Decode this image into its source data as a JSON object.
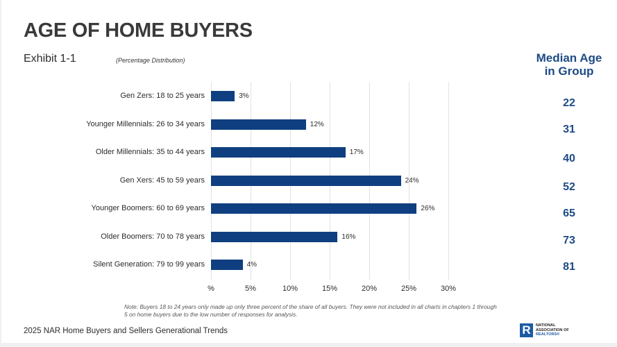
{
  "header": {
    "title": "AGE OF HOME BUYERS",
    "exhibit": "Exhibit 1-1",
    "subtitle": "(Percentage Distribution)"
  },
  "median": {
    "header_line1": "Median Age",
    "header_line2": "in Group",
    "values": [
      "22",
      "31",
      "40",
      "52",
      "65",
      "73",
      "81"
    ]
  },
  "chart_data": {
    "type": "bar",
    "orientation": "horizontal",
    "title": "AGE OF HOME BUYERS",
    "subtitle": "Exhibit 1-1 (Percentage Distribution)",
    "categories": [
      "Gen Zers: 18 to 25 years",
      "Younger Millennials: 26 to 34 years",
      "Older Millennials: 35 to 44 years",
      "Gen Xers: 45 to 59 years",
      "Younger Boomers: 60 to 69 years",
      "Older Boomers: 70 to 78 years",
      "Silent Generation: 79 to 99 years"
    ],
    "values": [
      3,
      12,
      17,
      24,
      26,
      16,
      4
    ],
    "value_labels": [
      "3%",
      "12%",
      "17%",
      "24%",
      "26%",
      "16%",
      "4%"
    ],
    "median_age": [
      22,
      31,
      40,
      52,
      65,
      73,
      81
    ],
    "xlabel": "",
    "ylabel": "",
    "xlim": [
      0,
      30
    ],
    "x_ticks": [
      "%",
      "5%",
      "10%",
      "15%",
      "20%",
      "25%",
      "30%"
    ],
    "grid": true,
    "bar_color": "#0f3f80",
    "legend": null
  },
  "note": "Note: Buyers 18 to 24 years only made up only three percent of the share of all buyers. They were not included in all charts in chapters 1 through 5 on home buyers due to the low number of responses for analysis.",
  "footer": {
    "source": "2025 NAR Home Buyers and Sellers Generational Trends",
    "logo_mark": "R",
    "logo_line1": "NATIONAL",
    "logo_line2": "ASSOCIATION OF",
    "logo_line3": "REALTORS®"
  },
  "colors": {
    "accent": "#1d4a85",
    "bar": "#0f3f80",
    "title": "#3a3a3a"
  }
}
